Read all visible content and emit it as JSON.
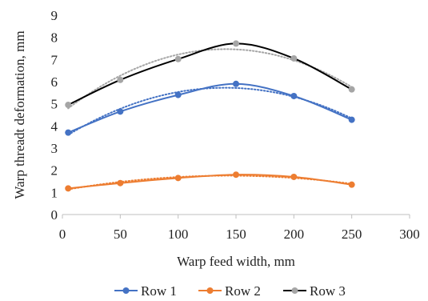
{
  "chart_data": {
    "type": "line",
    "title": "",
    "xlabel": "Warp feed width, mm",
    "ylabel": "Warp threadt deformation, mm",
    "xlim": [
      0,
      300
    ],
    "ylim": [
      0,
      9
    ],
    "xticks": [
      "0",
      "50",
      "100",
      "150",
      "200",
      "250",
      "300"
    ],
    "yticks": [
      "0",
      "1",
      "2",
      "3",
      "4",
      "5",
      "6",
      "7",
      "8",
      "9"
    ],
    "x": [
      5,
      50,
      100,
      150,
      200,
      250
    ],
    "grid": false,
    "legend_position": "bottom",
    "trendlines": "dotted polynomial fit per series",
    "series": [
      {
        "name": "Row 1",
        "color": "#4472C4",
        "values": [
          3.7,
          4.65,
          5.4,
          5.9,
          5.35,
          4.28
        ]
      },
      {
        "name": "Row 2",
        "color": "#ED7D31",
        "values": [
          1.18,
          1.42,
          1.65,
          1.8,
          1.7,
          1.35
        ]
      },
      {
        "name": "Row 3",
        "color": "#A5A5A5",
        "line_color": "#000000",
        "values": [
          4.95,
          6.08,
          7.02,
          7.72,
          7.05,
          5.65
        ]
      }
    ]
  }
}
